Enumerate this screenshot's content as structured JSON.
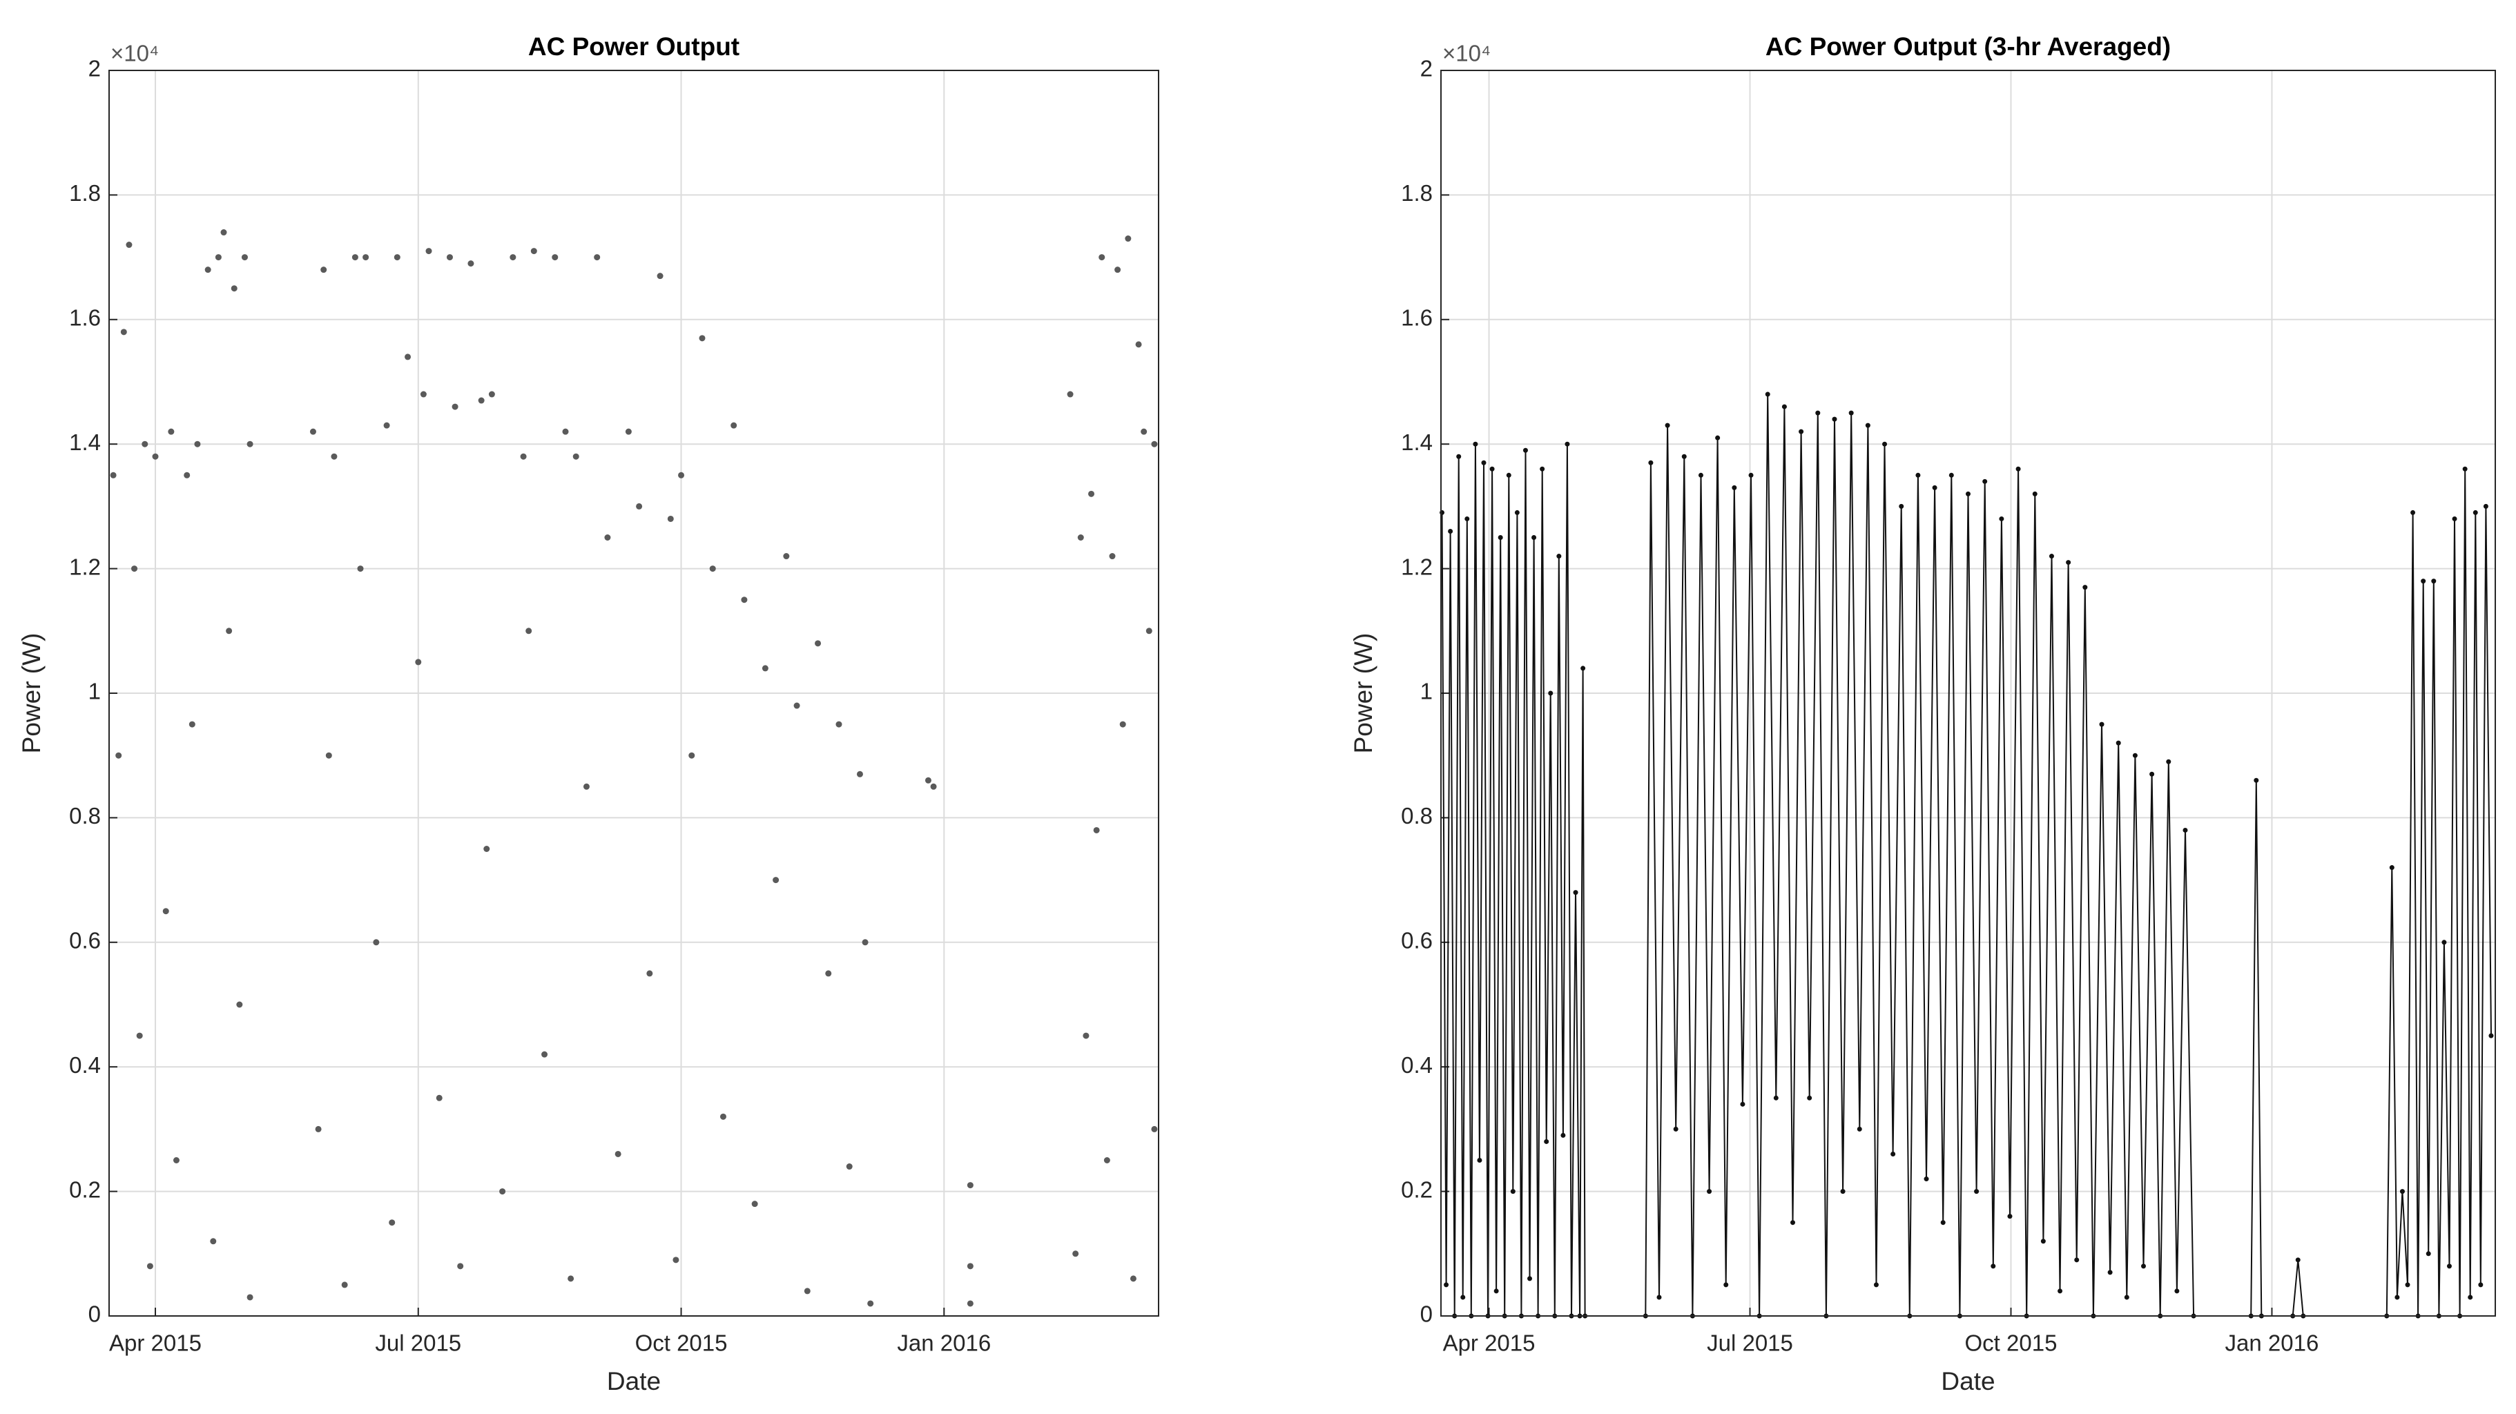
{
  "chart_data": [
    {
      "type": "scatter",
      "title": "AC Power Output",
      "xlabel": "Date",
      "ylabel": "Power (W)",
      "y_exponent": "×10⁴",
      "color": "#5a5a5a",
      "grid": true,
      "xlim": [
        2015.206,
        2016.204
      ],
      "ylim": [
        0,
        20000
      ],
      "xticks": [
        {
          "value": 2015.25,
          "label": "Apr 2015"
        },
        {
          "value": 2015.5,
          "label": "Jul 2015"
        },
        {
          "value": 2015.75,
          "label": "Oct 2015"
        },
        {
          "value": 2016.0,
          "label": "Jan 2016"
        }
      ],
      "yticks": [
        0,
        {
          "value": 2000,
          "label": "0.2"
        },
        {
          "value": 4000,
          "label": "0.4"
        },
        {
          "value": 6000,
          "label": "0.6"
        },
        {
          "value": 8000,
          "label": "0.8"
        },
        {
          "value": 10000,
          "label": "1"
        },
        {
          "value": 12000,
          "label": "1.2"
        },
        {
          "value": 14000,
          "label": "1.4"
        },
        {
          "value": 16000,
          "label": "1.6"
        },
        {
          "value": 18000,
          "label": "1.8"
        },
        {
          "value": 20000,
          "label": "2"
        }
      ],
      "x": [
        2015.21,
        2015.215,
        2015.22,
        2015.225,
        2015.23,
        2015.235,
        2015.24,
        2015.245,
        2015.25,
        2015.26,
        2015.265,
        2015.27,
        2015.28,
        2015.285,
        2015.29,
        2015.3,
        2015.305,
        2015.31,
        2015.315,
        2015.32,
        2015.325,
        2015.33,
        2015.335,
        2015.34,
        2015.34,
        2015.4,
        2015.405,
        2015.41,
        2015.415,
        2015.42,
        2015.43,
        2015.44,
        2015.445,
        2015.45,
        2015.46,
        2015.47,
        2015.475,
        2015.48,
        2015.49,
        2015.5,
        2015.505,
        2015.51,
        2015.52,
        2015.53,
        2015.535,
        2015.54,
        2015.55,
        2015.56,
        2015.565,
        2015.57,
        2015.58,
        2015.59,
        2015.6,
        2015.605,
        2015.61,
        2015.62,
        2015.63,
        2015.64,
        2015.645,
        2015.65,
        2015.66,
        2015.67,
        2015.68,
        2015.69,
        2015.7,
        2015.71,
        2015.72,
        2015.73,
        2015.74,
        2015.745,
        2015.75,
        2015.76,
        2015.77,
        2015.78,
        2015.79,
        2015.8,
        2015.81,
        2015.82,
        2015.83,
        2015.84,
        2015.85,
        2015.86,
        2015.87,
        2015.88,
        2015.89,
        2015.9,
        2015.91,
        2015.92,
        2015.925,
        2015.93,
        2015.985,
        2015.99,
        2016.025,
        2016.025,
        2016.025,
        2016.12,
        2016.125,
        2016.13,
        2016.135,
        2016.14,
        2016.145,
        2016.15,
        2016.155,
        2016.16,
        2016.165,
        2016.17,
        2016.175,
        2016.18,
        2016.185,
        2016.19,
        2016.195,
        2016.2,
        2016.2
      ],
      "values": [
        13500,
        9000,
        15800,
        17200,
        12000,
        4500,
        14000,
        800,
        13800,
        6500,
        14200,
        2500,
        13500,
        9500,
        14000,
        16800,
        1200,
        17000,
        17400,
        11000,
        16500,
        5000,
        17000,
        14000,
        300,
        14200,
        3000,
        16800,
        9000,
        13800,
        500,
        17000,
        12000,
        17000,
        6000,
        14300,
        1500,
        17000,
        15400,
        10500,
        14800,
        17100,
        3500,
        17000,
        14600,
        800,
        16900,
        14700,
        7500,
        14800,
        2000,
        17000,
        13800,
        11000,
        17100,
        4200,
        17000,
        14200,
        600,
        13800,
        8500,
        17000,
        12500,
        2600,
        14200,
        13000,
        5500,
        16700,
        12800,
        900,
        13500,
        9000,
        15700,
        12000,
        3200,
        14300,
        11500,
        1800,
        10400,
        7000,
        12200,
        9800,
        400,
        10800,
        5500,
        9500,
        2400,
        8700,
        6000,
        200,
        8600,
        8500,
        2100,
        800,
        200,
        14800,
        1000,
        12500,
        4500,
        13200,
        7800,
        17000,
        2500,
        12200,
        16800,
        9500,
        17300,
        600,
        15600,
        14200,
        11000,
        14000,
        3000
      ]
    },
    {
      "type": "line",
      "title": "AC Power Output (3-hr Averaged)",
      "xlabel": "Date",
      "ylabel": "Power (W)",
      "y_exponent": "×10⁴",
      "color": "#111111",
      "grid": true,
      "xlim": [
        2015.204,
        2016.214
      ],
      "ylim": [
        0,
        20000
      ],
      "xticks": [
        {
          "value": 2015.25,
          "label": "Apr 2015"
        },
        {
          "value": 2015.5,
          "label": "Jul 2015"
        },
        {
          "value": 2015.75,
          "label": "Oct 2015"
        },
        {
          "value": 2016.0,
          "label": "Jan 2016"
        }
      ],
      "yticks": [
        0,
        {
          "value": 2000,
          "label": "0.2"
        },
        {
          "value": 4000,
          "label": "0.4"
        },
        {
          "value": 6000,
          "label": "0.6"
        },
        {
          "value": 8000,
          "label": "0.8"
        },
        {
          "value": 10000,
          "label": "1"
        },
        {
          "value": 12000,
          "label": "1.2"
        },
        {
          "value": 14000,
          "label": "1.4"
        },
        {
          "value": 16000,
          "label": "1.6"
        },
        {
          "value": 18000,
          "label": "1.8"
        },
        {
          "value": 20000,
          "label": "2"
        }
      ],
      "x": [
        2015.205,
        2015.209,
        2015.213,
        2015.217,
        2015.221,
        2015.225,
        2015.229,
        2015.233,
        2015.237,
        2015.241,
        2015.245,
        2015.249,
        2015.253,
        2015.257,
        2015.261,
        2015.265,
        2015.269,
        2015.273,
        2015.277,
        2015.281,
        2015.285,
        2015.289,
        2015.293,
        2015.297,
        2015.301,
        2015.305,
        2015.309,
        2015.313,
        2015.317,
        2015.321,
        2015.325,
        2015.329,
        2015.333,
        2015.337,
        2015.34,
        2015.342,
        2015.4,
        2015.405,
        2015.413,
        2015.421,
        2015.429,
        2015.437,
        2015.445,
        2015.453,
        2015.461,
        2015.469,
        2015.477,
        2015.485,
        2015.493,
        2015.501,
        2015.509,
        2015.517,
        2015.525,
        2015.533,
        2015.541,
        2015.549,
        2015.557,
        2015.565,
        2015.573,
        2015.581,
        2015.589,
        2015.597,
        2015.605,
        2015.613,
        2015.621,
        2015.629,
        2015.637,
        2015.645,
        2015.653,
        2015.661,
        2015.669,
        2015.677,
        2015.685,
        2015.693,
        2015.701,
        2015.709,
        2015.717,
        2015.725,
        2015.733,
        2015.741,
        2015.749,
        2015.757,
        2015.765,
        2015.773,
        2015.781,
        2015.789,
        2015.797,
        2015.805,
        2015.813,
        2015.821,
        2015.829,
        2015.837,
        2015.845,
        2015.853,
        2015.861,
        2015.869,
        2015.877,
        2015.885,
        2015.893,
        2015.901,
        2015.909,
        2015.917,
        2015.925,
        2015.98,
        2015.985,
        2015.99,
        2016.02,
        2016.025,
        2016.03,
        2016.11,
        2016.115,
        2016.12,
        2016.125,
        2016.13,
        2016.135,
        2016.14,
        2016.145,
        2016.15,
        2016.155,
        2016.16,
        2016.165,
        2016.17,
        2016.175,
        2016.18,
        2016.185,
        2016.19,
        2016.195,
        2016.2,
        2016.205,
        2016.21
      ],
      "values": [
        12900,
        500,
        12600,
        0,
        13800,
        300,
        12800,
        0,
        14000,
        2500,
        13700,
        0,
        13600,
        400,
        12500,
        0,
        13500,
        2000,
        12900,
        0,
        13900,
        600,
        12500,
        0,
        13600,
        2800,
        10000,
        0,
        12200,
        2900,
        14000,
        0,
        6800,
        0,
        10400,
        0,
        0,
        13700,
        300,
        14300,
        3000,
        13800,
        0,
        13500,
        2000,
        14100,
        500,
        13300,
        3400,
        13500,
        0,
        14800,
        3500,
        14600,
        1500,
        14200,
        3500,
        14500,
        0,
        14400,
        2000,
        14500,
        3000,
        14300,
        500,
        14000,
        2600,
        13000,
        0,
        13500,
        2200,
        13300,
        1500,
        13500,
        0,
        13200,
        2000,
        13400,
        800,
        12800,
        1600,
        13600,
        0,
        13200,
        1200,
        12200,
        400,
        12100,
        900,
        11700,
        0,
        9500,
        700,
        9200,
        300,
        9000,
        800,
        8700,
        0,
        8900,
        400,
        7800,
        0,
        0,
        8600,
        0,
        0,
        900,
        0,
        0,
        7200,
        300,
        2000,
        500,
        12900,
        0,
        11800,
        1000,
        11800,
        0,
        6000,
        800,
        12800,
        0,
        13600,
        300,
        12900,
        500,
        13000,
        4500
      ]
    }
  ]
}
